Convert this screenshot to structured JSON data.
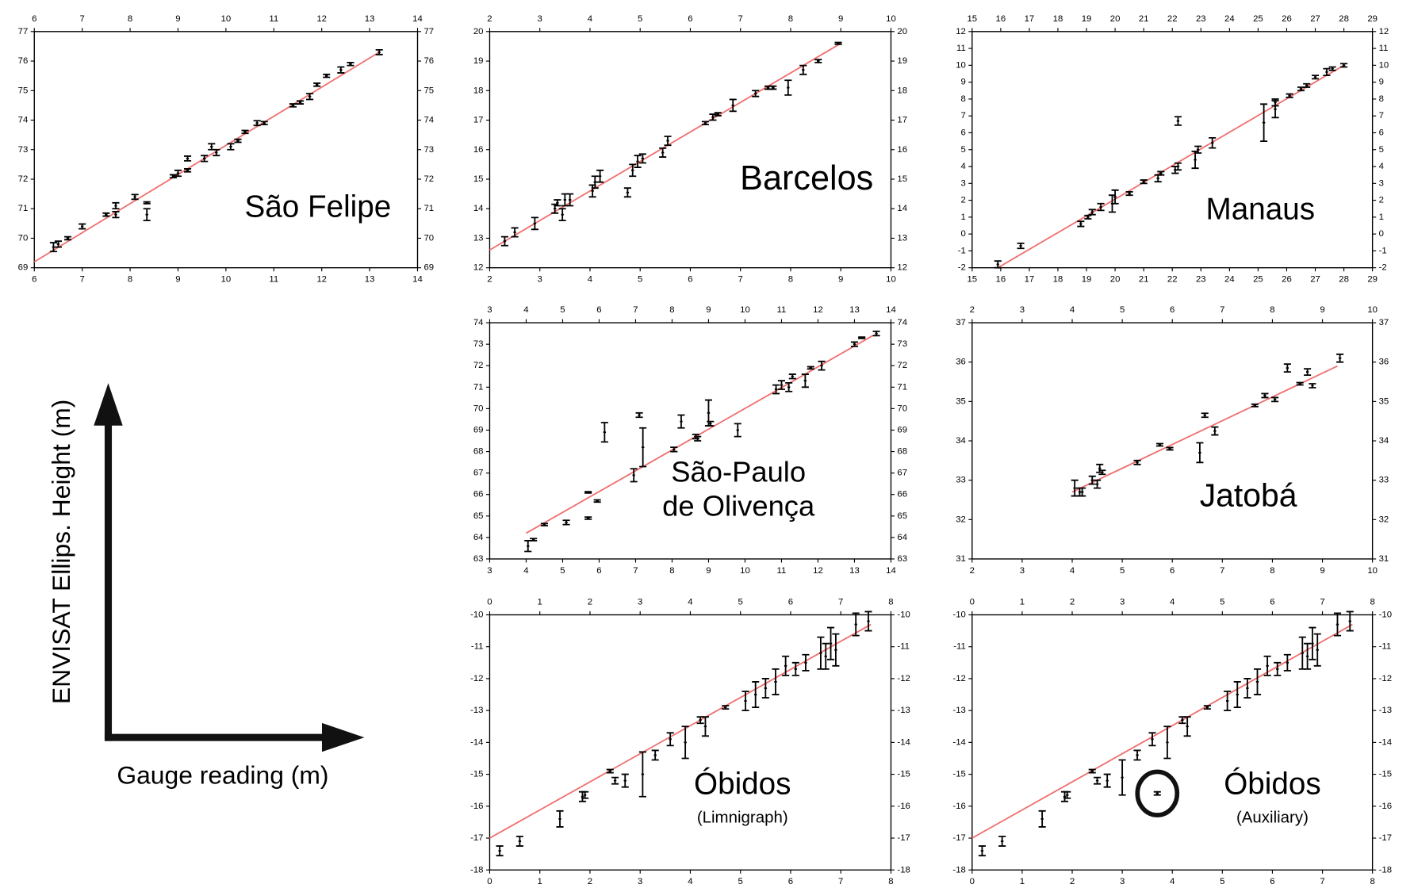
{
  "axes_key": {
    "y_label": "ENVISAT Ellips. Height (m)",
    "x_label": "Gauge reading (m)"
  },
  "chart_data": [
    {
      "type": "scatter",
      "annotation": "São Felipe",
      "color": "#000000",
      "x": [
        6.4,
        6.5,
        6.7,
        7.0,
        7.5,
        7.7,
        7.7,
        8.1,
        8.35,
        8.35,
        8.9,
        9.0,
        9.2,
        9.2,
        9.55,
        9.7,
        9.8,
        10.1,
        10.25,
        10.4,
        10.65,
        10.8,
        11.4,
        11.55,
        11.75,
        11.9,
        12.1,
        12.4,
        12.6,
        13.2
      ],
      "values": [
        69.7,
        69.8,
        70.0,
        70.4,
        70.8,
        70.8,
        71.1,
        71.4,
        70.8,
        71.2,
        72.1,
        72.2,
        72.3,
        72.7,
        72.7,
        73.1,
        72.9,
        73.1,
        73.3,
        73.6,
        73.9,
        73.9,
        74.5,
        74.6,
        74.8,
        75.2,
        75.5,
        75.7,
        75.9,
        76.3
      ],
      "errors": [
        0.15,
        0.1,
        0.05,
        0.08,
        0.05,
        0.1,
        0.1,
        0.08,
        0.2,
        0.03,
        0.05,
        0.1,
        0.05,
        0.08,
        0.1,
        0.1,
        0.1,
        0.1,
        0.05,
        0.05,
        0.08,
        0.05,
        0.05,
        0.05,
        0.1,
        0.05,
        0.05,
        0.1,
        0.05,
        0.08
      ],
      "fit": {
        "x": [
          6,
          13.2
        ],
        "values": [
          69.2,
          76.3
        ],
        "color": "#f07070"
      },
      "xlim": [
        6,
        14
      ],
      "ylim": [
        69,
        77
      ],
      "xticks": [
        6,
        7,
        8,
        9,
        10,
        11,
        12,
        13,
        14
      ],
      "yticks": [
        69,
        70,
        71,
        72,
        73,
        74,
        75,
        76,
        77
      ]
    },
    {
      "type": "scatter",
      "annotation": "Barcelos",
      "color": "#000000",
      "x": [
        2.3,
        2.5,
        2.9,
        3.3,
        3.35,
        3.45,
        3.5,
        3.6,
        4.05,
        4.1,
        4.2,
        4.75,
        4.85,
        4.95,
        5.05,
        5.45,
        5.55,
        6.3,
        6.45,
        6.55,
        6.85,
        7.3,
        7.55,
        7.65,
        7.95,
        8.25,
        8.55,
        8.95
      ],
      "values": [
        12.9,
        13.2,
        13.5,
        14.0,
        14.2,
        13.8,
        14.3,
        14.3,
        14.6,
        14.9,
        15.1,
        14.55,
        15.3,
        15.6,
        15.7,
        15.9,
        16.3,
        16.9,
        17.1,
        17.2,
        17.5,
        17.9,
        18.1,
        18.1,
        18.1,
        18.7,
        19.0,
        19.6
      ],
      "errors": [
        0.15,
        0.15,
        0.2,
        0.15,
        0.1,
        0.2,
        0.2,
        0.2,
        0.2,
        0.2,
        0.2,
        0.15,
        0.2,
        0.2,
        0.15,
        0.15,
        0.15,
        0.05,
        0.1,
        0.05,
        0.2,
        0.1,
        0.05,
        0.05,
        0.25,
        0.15,
        0.05,
        0.03
      ],
      "fit": {
        "x": [
          2,
          9
        ],
        "values": [
          12.6,
          19.6
        ],
        "color": "#f07070"
      },
      "xlim": [
        2,
        10
      ],
      "ylim": [
        12,
        20
      ],
      "xticks": [
        2,
        3,
        4,
        5,
        6,
        7,
        8,
        9,
        10
      ],
      "yticks": [
        12,
        13,
        14,
        15,
        16,
        17,
        18,
        19,
        20
      ]
    },
    {
      "type": "scatter",
      "annotation": "Manaus",
      "color": "#000000",
      "x": [
        15.9,
        16.7,
        18.8,
        19.05,
        19.2,
        19.5,
        19.9,
        20.0,
        20.5,
        21.0,
        21.5,
        21.6,
        22.1,
        22.2,
        22.2,
        22.8,
        22.9,
        23.4,
        25.2,
        25.6,
        25.6,
        26.1,
        26.5,
        26.7,
        27.0,
        27.4,
        27.6,
        28.0
      ],
      "values": [
        -1.8,
        -0.7,
        0.6,
        1.0,
        1.3,
        1.6,
        1.8,
        2.2,
        2.4,
        3.1,
        3.3,
        3.6,
        3.8,
        4.0,
        6.7,
        4.4,
        5.0,
        5.4,
        6.6,
        7.4,
        7.8,
        8.2,
        8.6,
        8.8,
        9.3,
        9.6,
        9.8,
        10.0
      ],
      "errors": [
        0.2,
        0.15,
        0.15,
        0.1,
        0.15,
        0.2,
        0.5,
        0.4,
        0.1,
        0.1,
        0.2,
        0.1,
        0.2,
        0.2,
        0.25,
        0.5,
        0.2,
        0.3,
        1.1,
        0.5,
        0.2,
        0.1,
        0.1,
        0.1,
        0.1,
        0.2,
        0.1,
        0.1
      ],
      "fit": {
        "x": [
          15.9,
          28
        ],
        "values": [
          -2,
          10
        ],
        "color": "#f07070"
      },
      "xlim": [
        15,
        29
      ],
      "ylim": [
        -2,
        12
      ],
      "xticks": [
        15,
        16,
        17,
        18,
        19,
        20,
        21,
        22,
        23,
        24,
        25,
        26,
        27,
        28,
        29
      ],
      "yticks": [
        -2,
        -1,
        0,
        1,
        2,
        3,
        4,
        5,
        6,
        7,
        8,
        9,
        10,
        11,
        12
      ]
    },
    {
      "type": "scatter",
      "annotation": "São-Paulo",
      "subtitle": "de Olivença",
      "color": "#000000",
      "x": [
        4.05,
        4.2,
        4.5,
        5.1,
        5.7,
        5.7,
        5.95,
        6.15,
        6.95,
        7.1,
        7.2,
        8.05,
        8.25,
        8.65,
        8.7,
        9.0,
        9.05,
        9.8,
        10.85,
        11.0,
        11.2,
        11.3,
        11.65,
        11.8,
        12.1,
        13.0,
        13.2,
        13.6
      ],
      "values": [
        63.6,
        63.9,
        64.6,
        64.7,
        64.9,
        66.1,
        65.7,
        68.9,
        66.9,
        69.7,
        68.2,
        68.1,
        69.4,
        68.7,
        68.6,
        69.8,
        69.3,
        69.0,
        70.9,
        71.1,
        71.0,
        71.5,
        71.3,
        71.9,
        72.0,
        73.0,
        73.3,
        73.5
      ],
      "errors": [
        0.25,
        0.05,
        0.05,
        0.1,
        0.05,
        0.03,
        0.05,
        0.45,
        0.3,
        0.1,
        0.9,
        0.1,
        0.3,
        0.1,
        0.1,
        0.6,
        0.1,
        0.3,
        0.2,
        0.2,
        0.2,
        0.1,
        0.3,
        0.05,
        0.2,
        0.1,
        0.03,
        0.1
      ],
      "fit": {
        "x": [
          4,
          13.5
        ],
        "values": [
          64.2,
          73.4
        ],
        "color": "#f07070"
      },
      "xlim": [
        3,
        14
      ],
      "ylim": [
        63,
        74
      ],
      "xticks": [
        3,
        4,
        5,
        6,
        7,
        8,
        9,
        10,
        11,
        12,
        13,
        14
      ],
      "yticks": [
        63,
        64,
        65,
        66,
        67,
        68,
        69,
        70,
        71,
        72,
        73,
        74
      ]
    },
    {
      "type": "scatter",
      "annotation": "Jatobá",
      "color": "#000000",
      "x": [
        4.05,
        4.15,
        4.2,
        4.4,
        4.5,
        4.55,
        4.6,
        5.3,
        5.75,
        5.95,
        6.55,
        6.65,
        6.85,
        7.65,
        7.85,
        8.05,
        8.3,
        8.55,
        8.7,
        8.8,
        9.35
      ],
      "values": [
        32.8,
        32.7,
        32.7,
        33.0,
        32.9,
        33.3,
        33.2,
        33.45,
        33.9,
        33.8,
        33.7,
        34.65,
        34.25,
        34.9,
        35.15,
        35.05,
        35.85,
        35.45,
        35.75,
        35.4,
        36.1
      ],
      "errors": [
        0.2,
        0.1,
        0.1,
        0.1,
        0.1,
        0.1,
        0.05,
        0.05,
        0.03,
        0.03,
        0.25,
        0.05,
        0.1,
        0.03,
        0.05,
        0.05,
        0.1,
        0.03,
        0.08,
        0.05,
        0.1
      ],
      "fit": {
        "x": [
          4,
          9.3
        ],
        "values": [
          32.7,
          35.9
        ],
        "color": "#f07070"
      },
      "xlim": [
        2,
        10
      ],
      "ylim": [
        31,
        37
      ],
      "xticks": [
        2,
        3,
        4,
        5,
        6,
        7,
        8,
        9,
        10
      ],
      "yticks": [
        31,
        32,
        33,
        34,
        35,
        36,
        37
      ]
    },
    {
      "type": "scatter",
      "annotation": "Óbidos",
      "subtitle": "(Limnigraph)",
      "color": "#000000",
      "x": [
        0.2,
        0.6,
        1.4,
        1.85,
        1.9,
        2.4,
        2.5,
        2.7,
        3.05,
        3.3,
        3.6,
        3.9,
        4.2,
        4.3,
        4.7,
        5.1,
        5.3,
        5.5,
        5.7,
        5.9,
        6.1,
        6.3,
        6.6,
        6.7,
        6.8,
        6.9,
        7.3,
        7.55
      ],
      "values": [
        -17.4,
        -17.1,
        -16.4,
        -15.7,
        -15.65,
        -14.9,
        -15.2,
        -15.2,
        -15.0,
        -14.4,
        -13.9,
        -14.0,
        -13.3,
        -13.5,
        -12.9,
        -12.7,
        -12.5,
        -12.3,
        -12.1,
        -11.6,
        -11.7,
        -11.5,
        -11.2,
        -11.3,
        -10.9,
        -11.1,
        -10.3,
        -10.2
      ],
      "errors": [
        0.15,
        0.15,
        0.25,
        0.15,
        0.1,
        0.05,
        0.1,
        0.2,
        0.7,
        0.15,
        0.2,
        0.5,
        0.1,
        0.3,
        0.05,
        0.3,
        0.4,
        0.3,
        0.4,
        0.3,
        0.2,
        0.25,
        0.5,
        0.4,
        0.5,
        0.5,
        0.35,
        0.3
      ],
      "fit": {
        "x": [
          0,
          7.6
        ],
        "values": [
          -17,
          -10.3
        ],
        "color": "#f07070"
      },
      "xlim": [
        0,
        8
      ],
      "ylim": [
        -18,
        -10
      ],
      "xticks": [
        0,
        1,
        2,
        3,
        4,
        5,
        6,
        7,
        8
      ],
      "yticks": [
        -18,
        -17,
        -16,
        -15,
        -14,
        -13,
        -12,
        -11,
        -10
      ]
    },
    {
      "type": "scatter",
      "annotation": "Óbidos",
      "subtitle": "(Auxiliary)",
      "color": "#000000",
      "x": [
        0.2,
        0.6,
        1.4,
        1.85,
        1.9,
        2.4,
        2.5,
        2.7,
        3.0,
        3.3,
        3.6,
        3.9,
        4.2,
        4.3,
        4.7,
        5.1,
        5.3,
        5.5,
        5.7,
        5.9,
        6.1,
        6.3,
        6.6,
        6.7,
        6.8,
        6.9,
        7.3,
        7.55,
        3.7
      ],
      "values": [
        -17.4,
        -17.1,
        -16.4,
        -15.7,
        -15.65,
        -14.9,
        -15.2,
        -15.2,
        -15.1,
        -14.4,
        -13.9,
        -14.0,
        -13.3,
        -13.5,
        -12.9,
        -12.7,
        -12.5,
        -12.3,
        -12.1,
        -11.6,
        -11.7,
        -11.5,
        -11.2,
        -11.3,
        -10.9,
        -11.1,
        -10.3,
        -10.2,
        -15.6
      ],
      "errors": [
        0.15,
        0.15,
        0.25,
        0.15,
        0.1,
        0.05,
        0.1,
        0.2,
        0.55,
        0.15,
        0.2,
        0.5,
        0.1,
        0.3,
        0.05,
        0.3,
        0.4,
        0.3,
        0.4,
        0.3,
        0.2,
        0.25,
        0.5,
        0.4,
        0.5,
        0.5,
        0.35,
        0.3,
        0.05
      ],
      "circled": [
        28
      ],
      "fit": {
        "x": [
          0,
          7.6
        ],
        "values": [
          -17,
          -10.3
        ],
        "color": "#f07070"
      },
      "xlim": [
        0,
        8
      ],
      "ylim": [
        -18,
        -10
      ],
      "xticks": [
        0,
        1,
        2,
        3,
        4,
        5,
        6,
        7,
        8
      ],
      "yticks": [
        -18,
        -17,
        -16,
        -15,
        -14,
        -13,
        -12,
        -11,
        -10
      ]
    }
  ]
}
